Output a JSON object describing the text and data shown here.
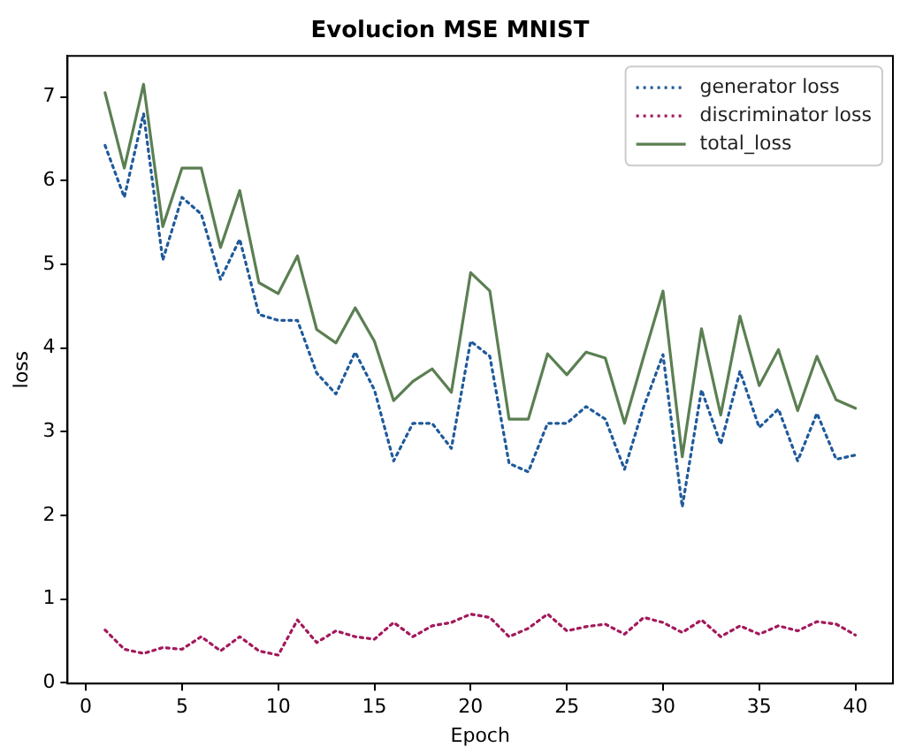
{
  "chart_data": {
    "type": "line",
    "title": "Evolucion MSE MNIST",
    "xlabel": "Epoch",
    "ylabel": "loss",
    "x": [
      1,
      2,
      3,
      4,
      5,
      6,
      7,
      8,
      9,
      10,
      11,
      12,
      13,
      14,
      15,
      16,
      17,
      18,
      19,
      20,
      21,
      22,
      23,
      24,
      25,
      26,
      27,
      28,
      29,
      30,
      31,
      32,
      33,
      34,
      35,
      36,
      37,
      38,
      39,
      40
    ],
    "series": [
      {
        "name": "generator loss",
        "color": "#1f5a9a",
        "line_style": "dotted",
        "values": [
          6.42,
          5.8,
          6.8,
          5.05,
          5.8,
          5.6,
          4.82,
          5.3,
          4.4,
          4.33,
          4.33,
          3.7,
          3.45,
          3.95,
          3.5,
          2.65,
          3.1,
          3.1,
          2.8,
          4.08,
          3.9,
          2.62,
          2.52,
          3.1,
          3.1,
          3.3,
          3.15,
          2.55,
          3.3,
          3.92,
          2.1,
          3.5,
          2.85,
          3.72,
          3.05,
          3.27,
          2.65,
          3.22,
          2.67,
          2.72
        ]
      },
      {
        "name": "discriminator loss",
        "color": "#a3195b",
        "line_style": "dotted",
        "values": [
          0.63,
          0.4,
          0.35,
          0.42,
          0.4,
          0.55,
          0.38,
          0.55,
          0.38,
          0.33,
          0.75,
          0.48,
          0.62,
          0.55,
          0.52,
          0.72,
          0.55,
          0.68,
          0.72,
          0.82,
          0.78,
          0.55,
          0.65,
          0.82,
          0.62,
          0.67,
          0.7,
          0.58,
          0.78,
          0.72,
          0.6,
          0.75,
          0.55,
          0.68,
          0.58,
          0.68,
          0.62,
          0.73,
          0.7,
          0.57
        ]
      },
      {
        "name": "total_loss",
        "color": "#5b7f52",
        "line_style": "solid",
        "values": [
          7.05,
          6.15,
          7.15,
          5.45,
          6.15,
          6.15,
          5.2,
          5.88,
          4.78,
          4.65,
          5.1,
          4.22,
          4.06,
          4.48,
          4.08,
          3.37,
          3.6,
          3.75,
          3.47,
          4.9,
          4.68,
          3.15,
          3.15,
          3.93,
          3.68,
          3.95,
          3.88,
          3.1,
          3.9,
          4.68,
          2.7,
          4.23,
          3.2,
          4.38,
          3.55,
          3.98,
          3.25,
          3.9,
          3.38,
          3.28
        ]
      }
    ],
    "xlim": [
      -0.95,
      41.95
    ],
    "xticks": [
      0,
      5,
      10,
      15,
      20,
      25,
      30,
      35,
      40
    ],
    "ylim": [
      -0.01,
      7.49
    ],
    "yticks": [
      0,
      1,
      2,
      3,
      4,
      5,
      6,
      7
    ],
    "grid": false,
    "legend": "top right",
    "marker": "none"
  }
}
